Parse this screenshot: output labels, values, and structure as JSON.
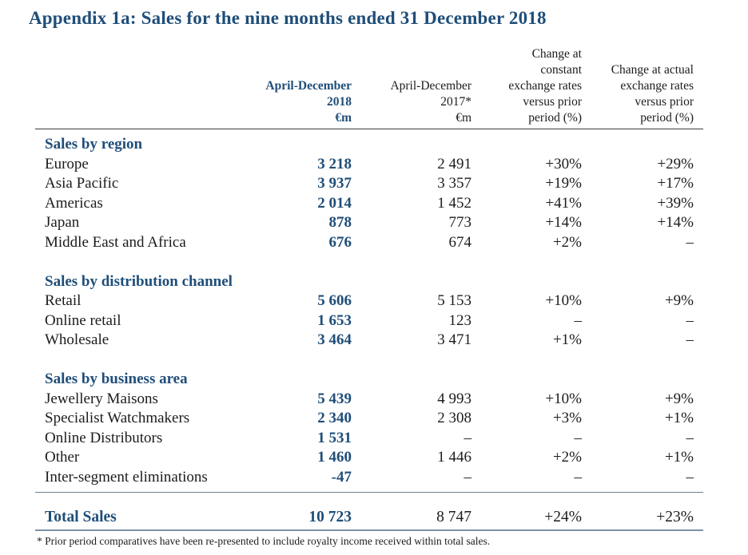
{
  "title": "Appendix 1a: Sales for the nine months ended 31 December 2018",
  "colors": {
    "accent_blue": "#1f4e79",
    "body_text": "#1c1c1c",
    "header_rule": "#3e3e3e",
    "total_rule": "#7b92a8"
  },
  "table": {
    "headers": {
      "c2018": [
        "April-December",
        "2018",
        "€m"
      ],
      "c2017": [
        "April-December",
        "2017*",
        "€m"
      ],
      "cconst": [
        "Change at",
        "constant",
        "exchange rates",
        "versus prior",
        "period (%)"
      ],
      "cactual": [
        "Change at actual",
        "exchange rates",
        "versus prior",
        "period (%)"
      ]
    },
    "sections": [
      {
        "heading": "Sales by region",
        "rows": [
          {
            "label": "Europe",
            "y2018": "3 218",
            "y2017": "2 491",
            "chg_const": "+30%",
            "chg_actual": "+29%"
          },
          {
            "label": "Asia Pacific",
            "y2018": "3 937",
            "y2017": "3 357",
            "chg_const": "+19%",
            "chg_actual": "+17%"
          },
          {
            "label": "Americas",
            "y2018": "2 014",
            "y2017": "1 452",
            "chg_const": "+41%",
            "chg_actual": "+39%"
          },
          {
            "label": "Japan",
            "y2018": "878",
            "y2017": "773",
            "chg_const": "+14%",
            "chg_actual": "+14%"
          },
          {
            "label": "Middle East and Africa",
            "y2018": "676",
            "y2017": "674",
            "chg_const": "+2%",
            "chg_actual": "–"
          }
        ]
      },
      {
        "heading": "Sales by distribution channel",
        "rows": [
          {
            "label": "Retail",
            "y2018": "5 606",
            "y2017": "5 153",
            "chg_const": "+10%",
            "chg_actual": "+9%"
          },
          {
            "label": "Online retail",
            "y2018": "1 653",
            "y2017": "123",
            "chg_const": "–",
            "chg_actual": "–"
          },
          {
            "label": "Wholesale",
            "y2018": "3 464",
            "y2017": "3 471",
            "chg_const": "+1%",
            "chg_actual": "–"
          }
        ]
      },
      {
        "heading": "Sales by business area",
        "rows": [
          {
            "label": "Jewellery Maisons",
            "y2018": "5 439",
            "y2017": "4 993",
            "chg_const": "+10%",
            "chg_actual": "+9%"
          },
          {
            "label": "Specialist Watchmakers",
            "y2018": "2 340",
            "y2017": "2 308",
            "chg_const": "+3%",
            "chg_actual": "+1%"
          },
          {
            "label": "Online Distributors",
            "y2018": "1 531",
            "y2017": "–",
            "chg_const": "–",
            "chg_actual": "–"
          },
          {
            "label": "Other",
            "y2018": "1 460",
            "y2017": "1 446",
            "chg_const": "+2%",
            "chg_actual": "+1%"
          },
          {
            "label": "Inter-segment eliminations",
            "y2018": "-47",
            "y2017": "–",
            "chg_const": "–",
            "chg_actual": "–"
          }
        ]
      }
    ],
    "total": {
      "label": "Total Sales",
      "y2018": "10 723",
      "y2017": "8 747",
      "chg_const": "+24%",
      "chg_actual": "+23%"
    },
    "footnote": "* Prior period comparatives have been re-presented to include royalty income received within total sales."
  }
}
